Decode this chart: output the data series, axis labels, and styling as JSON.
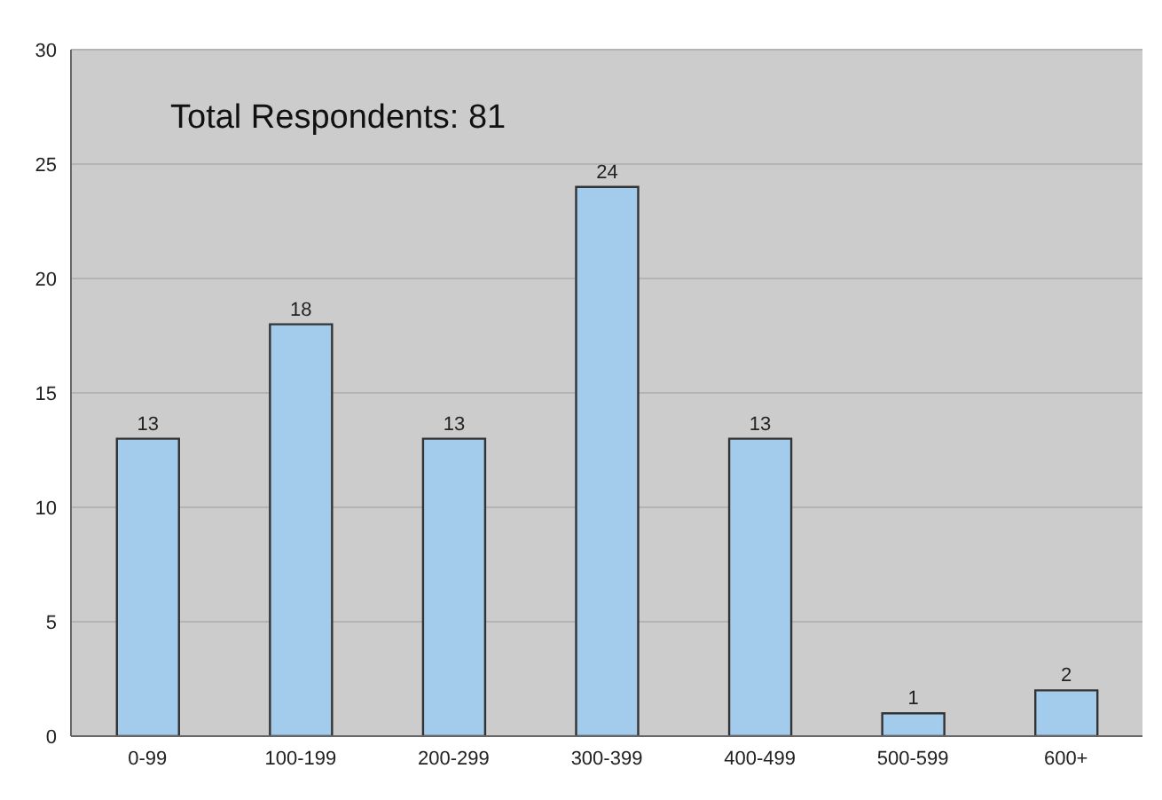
{
  "chart_data": {
    "type": "bar",
    "categories": [
      "0-99",
      "100-199",
      "200-299",
      "300-399",
      "400-499",
      "500-599",
      "600+"
    ],
    "values": [
      13,
      18,
      13,
      24,
      13,
      1,
      2
    ],
    "color": "#a3cbec",
    "ylim": [
      0,
      30
    ],
    "yticks": [
      0,
      5,
      10,
      15,
      20,
      25,
      30
    ],
    "grid": "y",
    "data_labels": true,
    "annotations": [
      "Total Respondents: 81"
    ]
  }
}
